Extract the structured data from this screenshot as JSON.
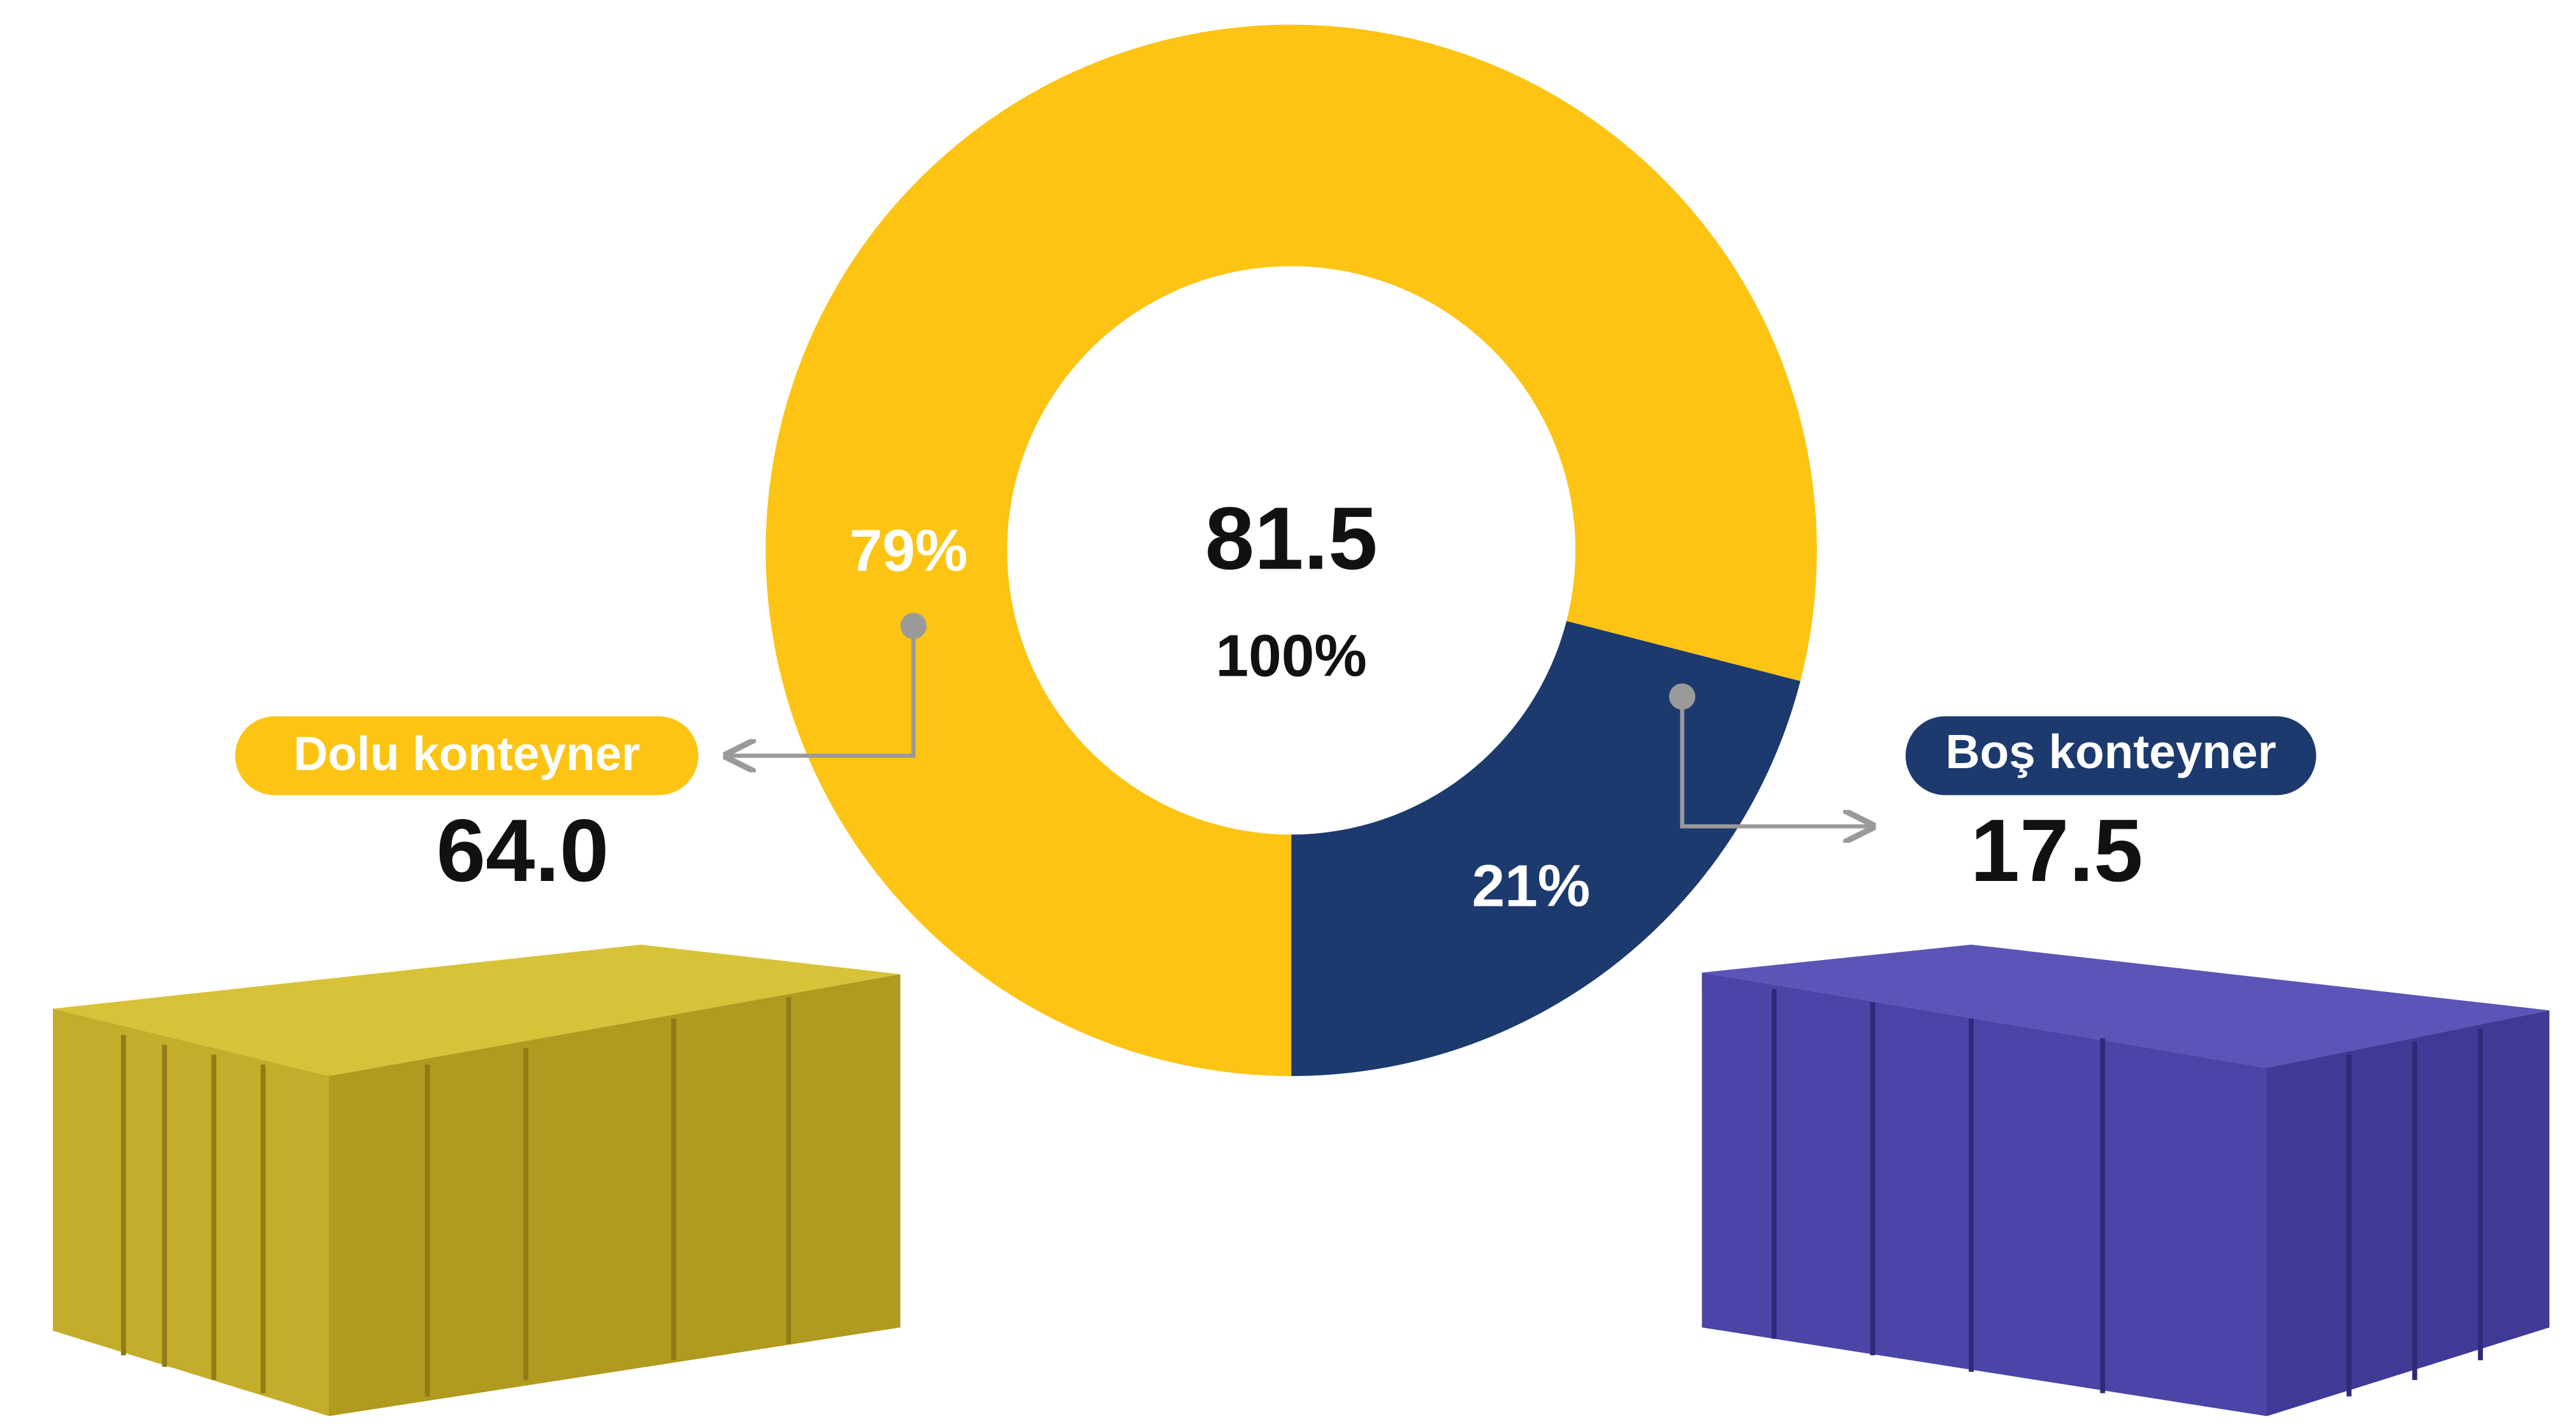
{
  "chart_data": {
    "type": "donut",
    "categories": [
      "Dolu konteyner",
      "Boş konteyner"
    ],
    "values": [
      79,
      21
    ],
    "value_labels": [
      "79%",
      "21%"
    ],
    "colors": [
      "#fdc413",
      "#1c3a6e"
    ],
    "amounts": [
      {
        "value": 64,
        "label": "64.0"
      },
      {
        "value": 17.5,
        "label": "17.5"
      }
    ],
    "total": 81.5,
    "total_percent": "100%"
  }
}
